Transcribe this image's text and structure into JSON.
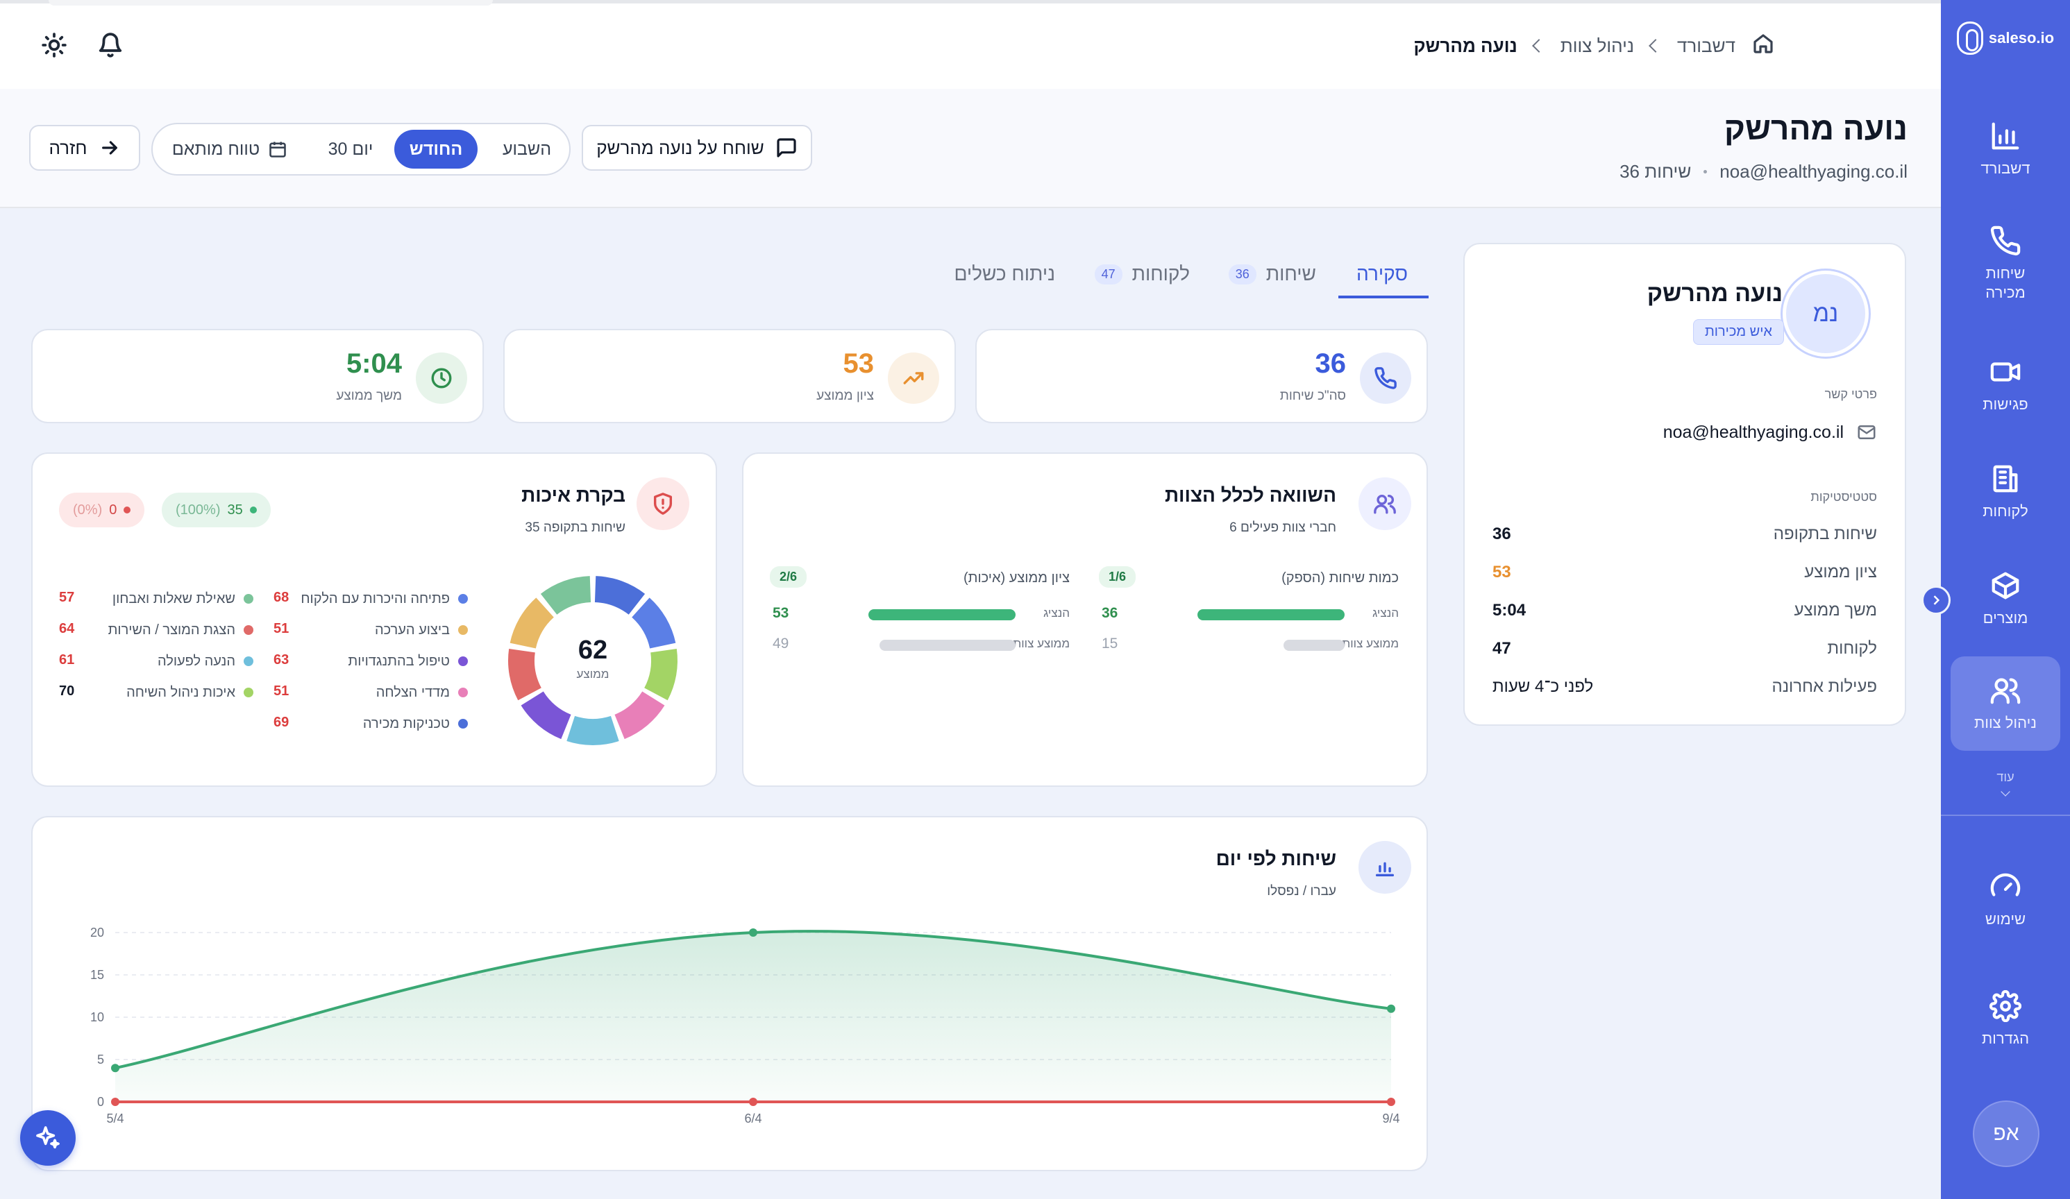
{
  "brand": {
    "name": "saleso.io"
  },
  "sidebar": {
    "items": [
      {
        "label": "דשבורד",
        "icon": "bar-chart-icon"
      },
      {
        "label": "שיחות\nמכירה",
        "icon": "phone-icon"
      },
      {
        "label": "פגישות",
        "icon": "video-icon"
      },
      {
        "label": "לקוחות",
        "icon": "building-icon"
      },
      {
        "label": "מוצרים",
        "icon": "box-icon"
      },
      {
        "label": "ניהול צוות",
        "icon": "users-icon",
        "active": true
      },
      {
        "label": "שימוש",
        "icon": "gauge-icon"
      },
      {
        "label": "הגדרות",
        "icon": "gear-icon"
      }
    ],
    "more_label": "עוד",
    "user_initials": "אפ"
  },
  "breadcrumb": {
    "items": [
      "דשבורד",
      "ניהול צוות",
      "נועה מהרשק"
    ]
  },
  "header": {
    "title": "נועה מהרשק",
    "email": "noa@healthyaging.co.il",
    "calls": "36 שיחות",
    "chat_button": "שוחח על נועה מהרשק",
    "back_button": "חזרה",
    "periods": {
      "week": "השבוע",
      "month": "החודש",
      "days30": "30 יום",
      "custom": "טווח מותאם",
      "selected": "החודש"
    }
  },
  "tabs": [
    {
      "label": "סקירה",
      "active": true
    },
    {
      "label": "שיחות",
      "badge": "36"
    },
    {
      "label": "לקוחות",
      "badge": "47"
    },
    {
      "label": "ניתוח כשלים"
    }
  ],
  "stats": [
    {
      "value": "36",
      "label": "סה\"כ שיחות",
      "color": "#3b5bdb",
      "icon": "phone-icon"
    },
    {
      "value": "53",
      "label": "ציון ממוצע",
      "color": "#e8902f",
      "icon": "trending-up-icon"
    },
    {
      "value": "5:04",
      "label": "משך ממוצע",
      "color": "#2f8f4e",
      "icon": "clock-icon"
    }
  ],
  "profile": {
    "initials": "נמ",
    "name": "נועה מהרשק",
    "role": "איש מכירות",
    "contact_title": "פרטי קשר",
    "email": "noa@healthyaging.co.il",
    "stats_title": "סטטיסטיקות",
    "rows": [
      {
        "k": "שיחות בתקופה",
        "v": "36",
        "color": "#111827"
      },
      {
        "k": "ציון ממוצע",
        "v": "53",
        "color": "#e8902f"
      },
      {
        "k": "משך ממוצע",
        "v": "5:04",
        "color": "#111827"
      },
      {
        "k": "לקוחות",
        "v": "47",
        "color": "#111827"
      },
      {
        "k": "פעילות אחרונה",
        "v": "לפני כ־4 שעות",
        "color": "#111827"
      }
    ]
  },
  "comparison": {
    "title": "השוואה לכלל הצוות",
    "subtitle": "6 חברי צוות פעילים",
    "blocks": [
      {
        "title": "כמות שיחות (הספק)",
        "rank": "1/6",
        "rep_label": "הנציג",
        "rep_value": 36,
        "avg_label": "ממוצע צוות",
        "avg_value": 15
      },
      {
        "title": "ציון ממוצע (איכות)",
        "rank": "2/6",
        "rep_label": "הנציג",
        "rep_value": 53,
        "avg_label": "ממוצע צוות",
        "avg_value": 49
      }
    ]
  },
  "quality": {
    "title": "בקרת איכות",
    "subtitle": "35 שיחות בתקופה",
    "pass": {
      "count": "35",
      "pct": "(100%)"
    },
    "fail": {
      "count": "0",
      "pct": "(0%)"
    },
    "center_value": "62",
    "center_label": "ממוצע",
    "categories": [
      {
        "name": "פתיחה והיכרות עם הלקוח",
        "value": 68,
        "color": "#5b7fe6"
      },
      {
        "name": "ביצוע הערכה",
        "value": 51,
        "color": "#e8b965"
      },
      {
        "name": "טיפול בהתנגדויות",
        "value": 63,
        "color": "#7a55d6"
      },
      {
        "name": "מדדי הצלחה",
        "value": 51,
        "color": "#e87fb8"
      },
      {
        "name": "טכניקות מכירה",
        "value": 69,
        "color": "#4c6fd9"
      },
      {
        "name": "שאילת שאלות ואבחון",
        "value": 57,
        "color": "#7bc49a"
      },
      {
        "name": "הצגת המוצר / השירות",
        "value": 64,
        "color": "#e06a68"
      },
      {
        "name": "הנעה לפעולה",
        "value": 61,
        "color": "#6fbfdc"
      },
      {
        "name": "איכות ניהול השיחה",
        "value": 70,
        "color": "#a3d465"
      }
    ]
  },
  "calls_chart": {
    "title": "שיחות לפי יום",
    "subtitle": "עברו / נפסלו"
  },
  "chart_data": {
    "type": "area",
    "title": "שיחות לפי יום",
    "subtitle": "עברו / נפסלו",
    "categories": [
      "5/4",
      "6/4",
      "9/4"
    ],
    "series": [
      {
        "name": "עברו",
        "values": [
          4,
          20,
          11
        ],
        "color": "#3aa874"
      },
      {
        "name": "נפסלו",
        "values": [
          0,
          0,
          0
        ],
        "color": "#e05555"
      }
    ],
    "ylim": [
      0,
      20
    ],
    "yticks": [
      0,
      5,
      10,
      15,
      20
    ],
    "grid": true,
    "smooth": true
  }
}
